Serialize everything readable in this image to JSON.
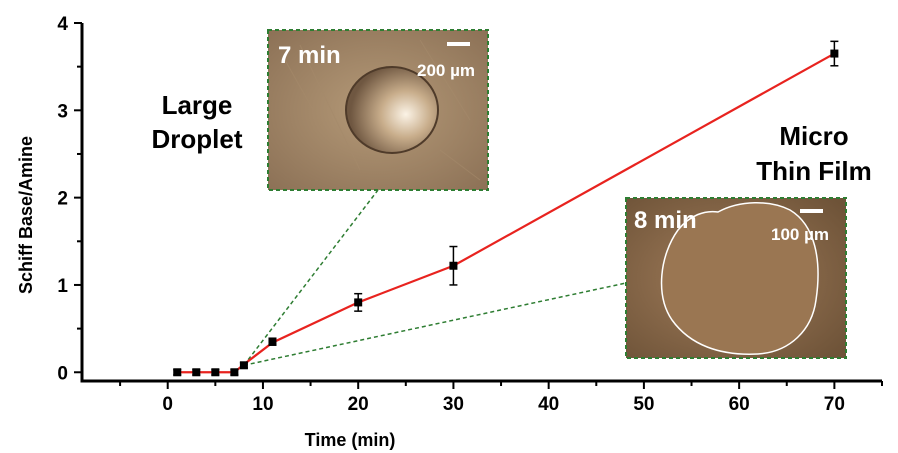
{
  "chart_data": {
    "type": "line",
    "xlabel": "Time (min)",
    "ylabel": "Schiff Base/Amine",
    "xlim": [
      -9,
      75
    ],
    "ylim": [
      -0.1,
      4
    ],
    "xticks": [
      "0",
      "10",
      "20",
      "30",
      "40",
      "50",
      "60",
      "70"
    ],
    "yticks": [
      "0",
      "1",
      "2",
      "3",
      "4"
    ],
    "series": [
      {
        "marker": "square",
        "color": "#000000",
        "points": [
          {
            "x": 1,
            "y": 0.0,
            "err": 0.03
          },
          {
            "x": 3,
            "y": 0.0,
            "err": 0.03
          },
          {
            "x": 5,
            "y": 0.0,
            "err": 0.03
          },
          {
            "x": 7,
            "y": 0.0,
            "err": 0.03
          },
          {
            "x": 8,
            "y": 0.08,
            "err": 0.03
          },
          {
            "x": 11,
            "y": 0.35,
            "err": 0.04
          },
          {
            "x": 20,
            "y": 0.8,
            "err": 0.1
          },
          {
            "x": 30,
            "y": 1.22,
            "err": 0.22
          },
          {
            "x": 70,
            "y": 3.65,
            "err": 0.14
          }
        ]
      }
    ],
    "fit_line": {
      "color": "#e8231f",
      "points": [
        {
          "x": 1,
          "y": 0
        },
        {
          "x": 7,
          "y": 0
        },
        {
          "x": 8,
          "y": 0.09
        },
        {
          "x": 11,
          "y": 0.34
        },
        {
          "x": 20,
          "y": 0.8
        },
        {
          "x": 30,
          "y": 1.22
        },
        {
          "x": 70,
          "y": 3.65
        }
      ]
    },
    "annotations": {
      "large_droplet": [
        "Large",
        "Droplet"
      ],
      "micro_thin_film": [
        "Micro",
        "Thin Film"
      ]
    },
    "insets": [
      {
        "time_label": "7 min",
        "scale_label": "200 µm",
        "points_to_x": 8,
        "points_to_y": 0.08
      },
      {
        "time_label": "8 min",
        "scale_label": "100 µm",
        "points_to_x": 8,
        "points_to_y": 0.08
      }
    ],
    "connector_color": "#2e7d32"
  }
}
